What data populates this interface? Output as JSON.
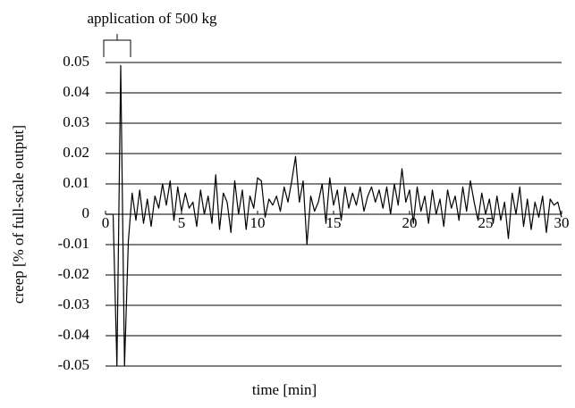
{
  "chart_data": {
    "type": "line",
    "annotation": "application of 500 kg",
    "x_label": "time [min]",
    "y_label": "creep [% of full-scale output]",
    "x": [
      0,
      0.25,
      0.5,
      0.75,
      1,
      1.25,
      1.5,
      1.75,
      2,
      2.25,
      2.5,
      2.75,
      3,
      3.25,
      3.5,
      3.75,
      4,
      4.25,
      4.5,
      4.75,
      5,
      5.25,
      5.5,
      5.75,
      6,
      6.25,
      6.5,
      6.75,
      7,
      7.25,
      7.5,
      7.75,
      8,
      8.25,
      8.5,
      8.75,
      9,
      9.25,
      9.5,
      9.75,
      10,
      10.25,
      10.5,
      10.75,
      11,
      11.25,
      11.5,
      11.75,
      12,
      12.25,
      12.5,
      12.75,
      13,
      13.25,
      13.5,
      13.75,
      14,
      14.25,
      14.5,
      14.75,
      15,
      15.25,
      15.5,
      15.75,
      16,
      16.25,
      16.5,
      16.75,
      17,
      17.25,
      17.5,
      17.75,
      18,
      18.25,
      18.5,
      18.75,
      19,
      19.25,
      19.5,
      19.75,
      20,
      20.25,
      20.5,
      20.75,
      21,
      21.25,
      21.5,
      21.75,
      22,
      22.25,
      22.5,
      22.75,
      23,
      23.25,
      23.5,
      23.75,
      24,
      24.25,
      24.5,
      24.75,
      25,
      25.25,
      25.5,
      25.75,
      26,
      26.25,
      26.5,
      26.75,
      27,
      27.25,
      27.5,
      27.75,
      28,
      28.25,
      28.5,
      28.75,
      29,
      29.25,
      29.5,
      29.75,
      30
    ],
    "series": [
      {
        "color": "#000000",
        "values": [
          0,
          0,
          0,
          -0.05,
          0.049,
          -0.05,
          -0.009,
          0.007,
          -0.002,
          0.008,
          -0.003,
          0.005,
          -0.004,
          0.006,
          0.002,
          0.01,
          0.003,
          0.011,
          -0.002,
          0.009,
          0.001,
          0.007,
          0.002,
          0.004,
          -0.004,
          0.008,
          0,
          0.006,
          -0.003,
          0.013,
          -0.005,
          0.007,
          0.004,
          -0.006,
          0.011,
          0,
          0.008,
          -0.005,
          0.006,
          0.002,
          0.012,
          0.011,
          -0.001,
          0.005,
          0.003,
          0.006,
          0.001,
          0.009,
          0.004,
          0.011,
          0.019,
          0.004,
          0.011,
          -0.01,
          0.006,
          0.001,
          0.004,
          0.01,
          -0.003,
          0.012,
          0.003,
          0.008,
          -0.002,
          0.009,
          0.002,
          0.007,
          0.003,
          0.009,
          0.001,
          0.006,
          0.009,
          0.004,
          0.008,
          0.002,
          0.009,
          0,
          0.01,
          0.003,
          0.015,
          0.004,
          0.008,
          -0.003,
          0.009,
          0.001,
          0.006,
          -0.003,
          0.008,
          0,
          0.005,
          -0.004,
          0.008,
          0.002,
          0.006,
          -0.002,
          0.009,
          0.001,
          0.011,
          0.004,
          -0.002,
          0.007,
          0,
          0.005,
          -0.003,
          0.006,
          -0.002,
          0.004,
          -0.008,
          0.007,
          0,
          0.009,
          -0.004,
          0.005,
          -0.005,
          0.004,
          -0.001,
          0.006,
          -0.006,
          0.005,
          0.003,
          0.004,
          -0.001
        ]
      }
    ],
    "xlim": [
      0,
      30
    ],
    "xticks": [
      0,
      5,
      10,
      15,
      20,
      25,
      30
    ],
    "ylim": [
      -0.05,
      0.05
    ],
    "yticks": [
      0.05,
      0.04,
      0.03,
      0.02,
      0.01,
      0,
      -0.01,
      -0.02,
      -0.03,
      -0.04,
      -0.05
    ],
    "grid": true
  }
}
